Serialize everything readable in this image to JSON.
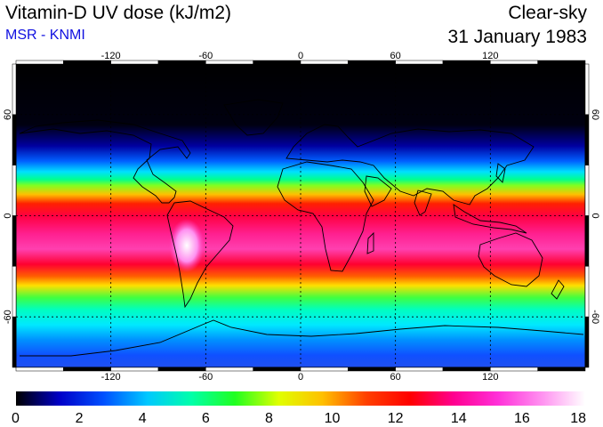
{
  "header": {
    "title": "Vitamin-D UV dose (kJ/m2)",
    "subtitle": "MSR - KNMI",
    "condition": "Clear-sky",
    "date": "31 January 1983"
  },
  "map": {
    "projection": "equirectangular",
    "lon_range": [
      -180,
      180
    ],
    "lat_range": [
      -90,
      90
    ],
    "lon_ticks": [
      -120,
      -60,
      0,
      60,
      120
    ],
    "lat_ticks": [
      -60,
      0,
      60
    ],
    "lon_tick_labels": [
      "-120",
      "-60",
      "0",
      "60",
      "120"
    ],
    "lat_tick_labels": [
      "-60",
      "0",
      "60"
    ],
    "gridlines": "dotted",
    "variable_unit": "kJ/m2"
  },
  "colorbar": {
    "min": 0,
    "max": 18,
    "tick_labels": [
      "0",
      "2",
      "4",
      "6",
      "8",
      "10",
      "12",
      "14",
      "16",
      "18"
    ],
    "colors": [
      "#000000",
      "#0000c8",
      "#0050ff",
      "#00c8ff",
      "#00ffaa",
      "#20ff20",
      "#e0ff00",
      "#ffc000",
      "#ff4000",
      "#ff0000",
      "#ff0090",
      "#ff30d8",
      "#ff90f0",
      "#ffffff"
    ]
  },
  "colors": {
    "title": "#000000",
    "subtitle": "#1010e0"
  }
}
